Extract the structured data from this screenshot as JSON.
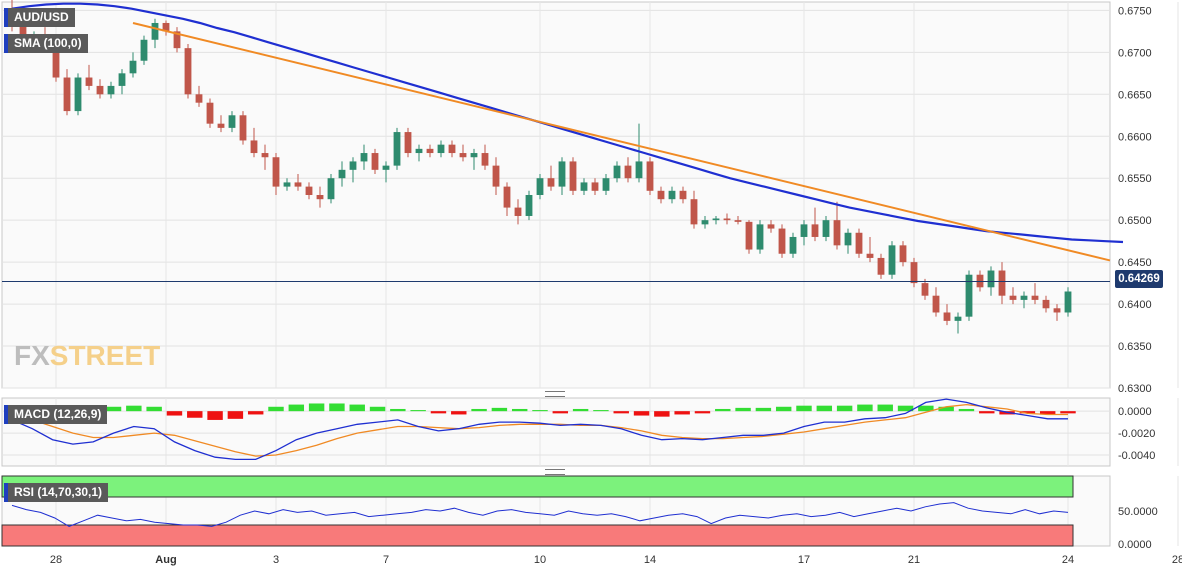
{
  "labels": {
    "symbol": "AUD/USD",
    "sma": "SMA (100,0)",
    "macd": "MACD (12,26,9)",
    "rsi": "RSI (14,70,30,1)",
    "current_price": "0.64269",
    "watermark_fx": "FX",
    "watermark_street": "STREET"
  },
  "colors": {
    "bull": "#2e8b6e",
    "bear": "#c0564a",
    "sma": "#1f2fd1",
    "trendline": "#f08a24",
    "price_line": "#1e3a6e",
    "macd_line": "#1f2fd1",
    "signal_line": "#f08a24",
    "hist_pos": "#33dd33",
    "hist_neg": "#ee1111",
    "rsi_line": "#1f2fd1",
    "rsi_over": "#7cf27c",
    "rsi_under": "#f87a7a"
  },
  "chart_data": [
    {
      "type": "candlestick",
      "title": "AUD/USD",
      "ylim": [
        0.63,
        0.676
      ],
      "yticks": [
        "0.6300",
        "0.6350",
        "0.6400",
        "0.6450",
        "0.6500",
        "0.6550",
        "0.6600",
        "0.6650",
        "0.6700",
        "0.6750"
      ],
      "xticks": [
        {
          "label": "28",
          "index": 4
        },
        {
          "label": "Aug",
          "index": 14
        },
        {
          "label": "3",
          "index": 24
        },
        {
          "label": "7",
          "index": 34
        },
        {
          "label": "10",
          "index": 48
        },
        {
          "label": "14",
          "index": 58
        },
        {
          "label": "17",
          "index": 72
        },
        {
          "label": "21",
          "index": 82
        },
        {
          "label": "24",
          "index": 96
        },
        {
          "label": "28",
          "index": 106
        }
      ],
      "current_price": 0.64269,
      "ohlc": [
        [
          0.6745,
          0.6765,
          0.6725,
          0.674
        ],
        [
          0.674,
          0.6745,
          0.67,
          0.6705
        ],
        [
          0.6705,
          0.6725,
          0.67,
          0.672
        ],
        [
          0.672,
          0.673,
          0.6705,
          0.671
        ],
        [
          0.671,
          0.6715,
          0.6665,
          0.667
        ],
        [
          0.667,
          0.668,
          0.6625,
          0.663
        ],
        [
          0.663,
          0.6675,
          0.6625,
          0.667
        ],
        [
          0.667,
          0.6685,
          0.6655,
          0.666
        ],
        [
          0.666,
          0.6668,
          0.6645,
          0.665
        ],
        [
          0.665,
          0.6665,
          0.6645,
          0.666
        ],
        [
          0.666,
          0.668,
          0.665,
          0.6675
        ],
        [
          0.6675,
          0.67,
          0.667,
          0.669
        ],
        [
          0.669,
          0.672,
          0.6685,
          0.6715
        ],
        [
          0.6715,
          0.674,
          0.6705,
          0.6735
        ],
        [
          0.6735,
          0.6738,
          0.672,
          0.6725
        ],
        [
          0.6725,
          0.673,
          0.67,
          0.6705
        ],
        [
          0.6705,
          0.671,
          0.6645,
          0.665
        ],
        [
          0.665,
          0.666,
          0.6635,
          0.664
        ],
        [
          0.664,
          0.6645,
          0.661,
          0.6615
        ],
        [
          0.6615,
          0.6625,
          0.6605,
          0.661
        ],
        [
          0.661,
          0.663,
          0.6605,
          0.6625
        ],
        [
          0.6625,
          0.663,
          0.659,
          0.6595
        ],
        [
          0.6595,
          0.661,
          0.6575,
          0.658
        ],
        [
          0.658,
          0.659,
          0.656,
          0.6575
        ],
        [
          0.6575,
          0.658,
          0.653,
          0.654
        ],
        [
          0.654,
          0.655,
          0.6535,
          0.6545
        ],
        [
          0.6545,
          0.6555,
          0.6535,
          0.654
        ],
        [
          0.654,
          0.6545,
          0.6525,
          0.653
        ],
        [
          0.653,
          0.654,
          0.6515,
          0.6525
        ],
        [
          0.6525,
          0.6555,
          0.652,
          0.655
        ],
        [
          0.655,
          0.657,
          0.654,
          0.656
        ],
        [
          0.656,
          0.6575,
          0.6545,
          0.657
        ],
        [
          0.657,
          0.659,
          0.656,
          0.658
        ],
        [
          0.658,
          0.6585,
          0.6555,
          0.656
        ],
        [
          0.656,
          0.657,
          0.6545,
          0.6565
        ],
        [
          0.6565,
          0.661,
          0.656,
          0.6605
        ],
        [
          0.6605,
          0.661,
          0.6575,
          0.658
        ],
        [
          0.658,
          0.659,
          0.657,
          0.6585
        ],
        [
          0.6585,
          0.659,
          0.6575,
          0.658
        ],
        [
          0.658,
          0.6595,
          0.6575,
          0.659
        ],
        [
          0.659,
          0.6595,
          0.6575,
          0.658
        ],
        [
          0.658,
          0.659,
          0.657,
          0.6575
        ],
        [
          0.6575,
          0.6585,
          0.656,
          0.658
        ],
        [
          0.658,
          0.659,
          0.656,
          0.6565
        ],
        [
          0.6565,
          0.6575,
          0.653,
          0.654
        ],
        [
          0.654,
          0.6545,
          0.6505,
          0.6515
        ],
        [
          0.6515,
          0.6525,
          0.6495,
          0.6505
        ],
        [
          0.6505,
          0.6535,
          0.65,
          0.653
        ],
        [
          0.653,
          0.6555,
          0.6525,
          0.655
        ],
        [
          0.655,
          0.6565,
          0.6535,
          0.654
        ],
        [
          0.654,
          0.6575,
          0.653,
          0.657
        ],
        [
          0.657,
          0.6575,
          0.653,
          0.6535
        ],
        [
          0.6535,
          0.655,
          0.653,
          0.6545
        ],
        [
          0.6545,
          0.655,
          0.653,
          0.6535
        ],
        [
          0.6535,
          0.6555,
          0.653,
          0.655
        ],
        [
          0.655,
          0.657,
          0.6545,
          0.6565
        ],
        [
          0.6565,
          0.6575,
          0.6545,
          0.655
        ],
        [
          0.655,
          0.6615,
          0.6545,
          0.657
        ],
        [
          0.657,
          0.6575,
          0.653,
          0.6535
        ],
        [
          0.6535,
          0.654,
          0.652,
          0.6525
        ],
        [
          0.6525,
          0.654,
          0.652,
          0.6535
        ],
        [
          0.6535,
          0.654,
          0.652,
          0.6525
        ],
        [
          0.6525,
          0.6535,
          0.649,
          0.6495
        ],
        [
          0.6495,
          0.6505,
          0.649,
          0.65
        ],
        [
          0.65,
          0.6505,
          0.6495,
          0.6502
        ],
        [
          0.6502,
          0.6508,
          0.6495,
          0.65
        ],
        [
          0.65,
          0.6505,
          0.6495,
          0.6498
        ],
        [
          0.6498,
          0.65,
          0.646,
          0.6465
        ],
        [
          0.6465,
          0.65,
          0.646,
          0.6495
        ],
        [
          0.6495,
          0.65,
          0.6485,
          0.649
        ],
        [
          0.649,
          0.6495,
          0.6455,
          0.646
        ],
        [
          0.646,
          0.6485,
          0.6455,
          0.648
        ],
        [
          0.648,
          0.65,
          0.647,
          0.6495
        ],
        [
          0.6495,
          0.6515,
          0.6475,
          0.648
        ],
        [
          0.648,
          0.6505,
          0.6475,
          0.65
        ],
        [
          0.65,
          0.6522,
          0.6465,
          0.647
        ],
        [
          0.647,
          0.649,
          0.646,
          0.6485
        ],
        [
          0.6485,
          0.649,
          0.6455,
          0.646
        ],
        [
          0.646,
          0.648,
          0.645,
          0.6455
        ],
        [
          0.6455,
          0.646,
          0.643,
          0.6435
        ],
        [
          0.6435,
          0.6475,
          0.643,
          0.647
        ],
        [
          0.647,
          0.6475,
          0.6445,
          0.645
        ],
        [
          0.645,
          0.6455,
          0.642,
          0.6425
        ],
        [
          0.6425,
          0.643,
          0.6405,
          0.641
        ],
        [
          0.641,
          0.642,
          0.6385,
          0.639
        ],
        [
          0.639,
          0.64,
          0.6375,
          0.638
        ],
        [
          0.638,
          0.639,
          0.6365,
          0.6385
        ],
        [
          0.6385,
          0.644,
          0.638,
          0.6435
        ],
        [
          0.6435,
          0.644,
          0.6415,
          0.642
        ],
        [
          0.642,
          0.6445,
          0.641,
          0.644
        ],
        [
          0.644,
          0.645,
          0.64,
          0.641
        ],
        [
          0.641,
          0.642,
          0.64,
          0.6405
        ],
        [
          0.6405,
          0.6415,
          0.6395,
          0.641
        ],
        [
          0.641,
          0.6425,
          0.64,
          0.6405
        ],
        [
          0.6405,
          0.641,
          0.639,
          0.6395
        ],
        [
          0.6395,
          0.64,
          0.638,
          0.639
        ],
        [
          0.639,
          0.642,
          0.6385,
          0.6415
        ]
      ],
      "series": [
        {
          "name": "SMA (100,0)",
          "values": [
            0.6752,
            0.6755,
            0.6757,
            0.6758,
            0.6758,
            0.6757,
            0.6755,
            0.6752,
            0.6748,
            0.6744,
            0.674,
            0.6735,
            0.6729,
            0.6724,
            0.6718,
            0.6712,
            0.6706,
            0.67,
            0.6694,
            0.6688,
            0.6682,
            0.6676,
            0.667,
            0.6664,
            0.6658,
            0.6652,
            0.6646,
            0.664,
            0.6634,
            0.6628,
            0.6622,
            0.6616,
            0.661,
            0.6604,
            0.6598,
            0.6592,
            0.6586,
            0.658,
            0.6574,
            0.6568,
            0.6562,
            0.6556,
            0.655,
            0.6545,
            0.654,
            0.6535,
            0.653,
            0.6525,
            0.652,
            0.6515,
            0.6511,
            0.6507,
            0.6503,
            0.6499,
            0.6496,
            0.6493,
            0.649,
            0.6487,
            0.6485,
            0.6483,
            0.6481,
            0.6479,
            0.6477,
            0.6476,
            0.6475,
            0.6474
          ]
        },
        {
          "name": "trendline",
          "values": [
            0.6735,
            0.6452
          ]
        }
      ]
    },
    {
      "type": "macd",
      "title": "MACD (12,26,9)",
      "ylim": [
        -0.005,
        0.0012
      ],
      "yticks": [
        "-0.0040",
        "-0.0020",
        "0.0000"
      ],
      "macd": [
        -0.0008,
        -0.0016,
        -0.0026,
        -0.003,
        -0.0028,
        -0.002,
        -0.0014,
        -0.0016,
        -0.0028,
        -0.0036,
        -0.0042,
        -0.0044,
        -0.0044,
        -0.0036,
        -0.0026,
        -0.002,
        -0.0016,
        -0.0012,
        -0.001,
        -0.0008,
        -0.0014,
        -0.0018,
        -0.0016,
        -0.0012,
        -0.001,
        -0.001,
        -0.0011,
        -0.0013,
        -0.0012,
        -0.0013,
        -0.0016,
        -0.0022,
        -0.0026,
        -0.0025,
        -0.0026,
        -0.0024,
        -0.0022,
        -0.0022,
        -0.002,
        -0.0014,
        -0.001,
        -0.001,
        -0.0007,
        -0.0006,
        -0.0002,
        0.0008,
        0.0011,
        0.0008,
        0.0003,
        -0.0001,
        -0.0004,
        -0.0007,
        -0.0007
      ],
      "signal": [
        -0.0004,
        -0.0008,
        -0.0014,
        -0.002,
        -0.0024,
        -0.0024,
        -0.0022,
        -0.002,
        -0.0022,
        -0.0027,
        -0.0032,
        -0.0037,
        -0.0041,
        -0.004,
        -0.0036,
        -0.0031,
        -0.0025,
        -0.002,
        -0.0017,
        -0.0014,
        -0.0014,
        -0.0015,
        -0.0016,
        -0.0015,
        -0.0013,
        -0.0012,
        -0.0012,
        -0.0012,
        -0.0013,
        -0.0013,
        -0.0015,
        -0.0018,
        -0.0022,
        -0.0024,
        -0.0025,
        -0.0025,
        -0.0024,
        -0.0023,
        -0.0021,
        -0.0019,
        -0.0016,
        -0.0013,
        -0.001,
        -0.0008,
        -0.0006,
        -0.0001,
        0.0004,
        0.0006,
        0.0004,
        0.0002,
        -0.0002,
        -0.0003,
        -0.0003
      ],
      "histogram": [
        -0.0002,
        -0.0004,
        -0.0006,
        -0.0006,
        -0.0005,
        0.0004,
        0.0005,
        0.0004,
        -0.0004,
        -0.0006,
        -0.0008,
        -0.0007,
        -0.0003,
        0.0004,
        0.0006,
        0.0007,
        0.0007,
        0.0006,
        0.0004,
        0.0002,
        0.0001,
        -0.0002,
        -0.0003,
        0.0002,
        0.0003,
        0.0002,
        0.0001,
        -0.0002,
        0.0002,
        0.0001,
        -0.0002,
        -0.0004,
        -0.0005,
        -0.0003,
        -0.0002,
        0.0002,
        0.0003,
        0.0003,
        0.0004,
        0.0005,
        0.0005,
        0.0005,
        0.0006,
        0.0006,
        0.0005,
        0.0005,
        0.0004,
        0.0002,
        -0.0002,
        -0.0003,
        -0.0002,
        -0.0003,
        -0.0002
      ]
    },
    {
      "type": "line",
      "title": "RSI (14,70,30,1)",
      "ylim": [
        0,
        100
      ],
      "yticks": [
        "0.0000",
        "50.0000"
      ],
      "overbought": 70,
      "oversold": 30,
      "values": [
        58,
        52,
        48,
        40,
        28,
        36,
        44,
        40,
        36,
        38,
        34,
        32,
        30,
        30,
        28,
        34,
        44,
        50,
        46,
        52,
        48,
        50,
        44,
        46,
        48,
        42,
        44,
        46,
        48,
        52,
        50,
        54,
        48,
        44,
        50,
        52,
        48,
        46,
        44,
        50,
        46,
        44,
        46,
        42,
        36,
        40,
        44,
        46,
        42,
        32,
        40,
        44,
        42,
        40,
        44,
        46,
        42,
        44,
        48,
        42,
        46,
        50,
        54,
        50,
        56,
        60,
        62,
        54,
        50,
        48,
        46,
        52,
        46,
        50,
        48
      ]
    }
  ]
}
